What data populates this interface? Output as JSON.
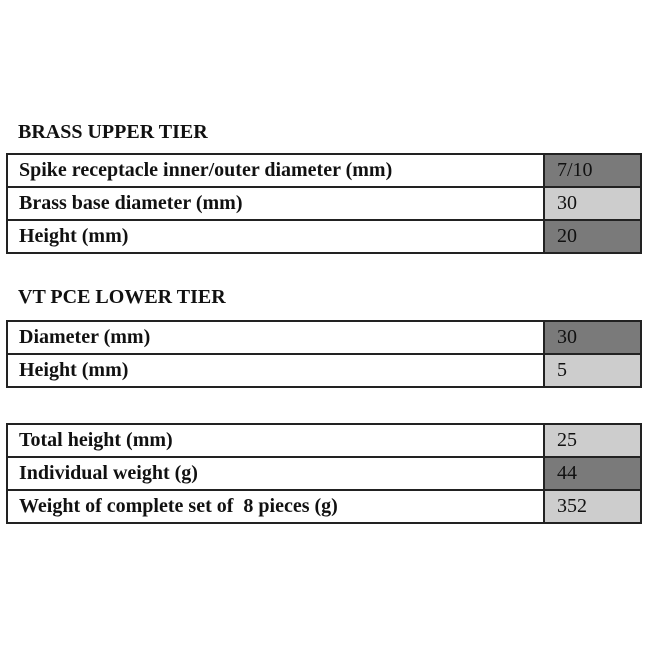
{
  "sections": [
    {
      "heading": "BRASS UPPER TIER",
      "rows": [
        {
          "label": "Spike receptacle inner/outer diameter (mm)",
          "value": "7/10",
          "shade": "dark"
        },
        {
          "label": "Brass base diameter (mm)",
          "value": "30",
          "shade": "light"
        },
        {
          "label": "Height (mm)",
          "value": "20",
          "shade": "dark"
        }
      ]
    },
    {
      "heading": "VT PCE LOWER TIER",
      "rows": [
        {
          "label": "Diameter (mm)",
          "value": "30",
          "shade": "dark"
        },
        {
          "label": "Height (mm)",
          "value": "5",
          "shade": "light"
        }
      ]
    },
    {
      "heading": "",
      "rows": [
        {
          "label": "Total height (mm)",
          "value": "25",
          "shade": "light"
        },
        {
          "label": "Individual weight (g)",
          "value": "44",
          "shade": "dark"
        },
        {
          "label": "Weight of complete set of  8 pieces (g)",
          "value": "352",
          "shade": "light"
        }
      ]
    }
  ],
  "colors": {
    "dark": "#7a7a7a",
    "light": "#cdcdcd",
    "border": "#222222"
  }
}
